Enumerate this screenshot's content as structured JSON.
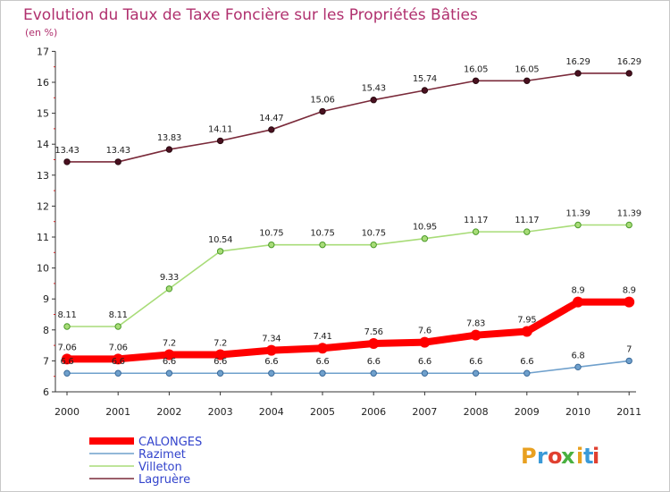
{
  "chart_data": {
    "type": "line",
    "title": "Evolution du Taux de Taxe Foncière sur les Propriétés Bâties",
    "unit_label": "(en %)",
    "categories": [
      "2000",
      "2001",
      "2002",
      "2003",
      "2004",
      "2005",
      "2006",
      "2007",
      "2008",
      "2009",
      "2010",
      "2011"
    ],
    "ylim": [
      6,
      17
    ],
    "yticks": [
      6,
      7,
      8,
      9,
      10,
      11,
      12,
      13,
      14,
      15,
      16,
      17
    ],
    "grid": false,
    "legend_position": "bottom-left",
    "series": [
      {
        "name": "CALONGES",
        "color": "#ff0000",
        "values": [
          7.06,
          7.06,
          7.2,
          7.2,
          7.34,
          7.41,
          7.56,
          7.6,
          7.83,
          7.95,
          8.9,
          8.9
        ],
        "labels": [
          "7.06",
          "7.06",
          "7.2",
          "7.2",
          "7.34",
          "7.41",
          "7.56",
          "7.6",
          "7.83",
          "7.95",
          "8.9",
          "8.9"
        ]
      },
      {
        "name": "Razimet",
        "color": "#6fa0cc",
        "values": [
          6.6,
          6.6,
          6.6,
          6.6,
          6.6,
          6.6,
          6.6,
          6.6,
          6.6,
          6.6,
          6.8,
          7
        ],
        "labels": [
          "6.6",
          "6.6",
          "6.6",
          "6.6",
          "6.6",
          "6.6",
          "6.6",
          "6.6",
          "6.6",
          "6.6",
          "6.8",
          "7"
        ]
      },
      {
        "name": "Villeton",
        "color": "#a8dc78",
        "values": [
          8.11,
          8.11,
          9.33,
          10.54,
          10.75,
          10.75,
          10.75,
          10.95,
          11.17,
          11.17,
          11.39,
          11.39
        ],
        "labels": [
          "8.11",
          "8.11",
          "9.33",
          "10.54",
          "10.75",
          "10.75",
          "10.75",
          "10.95",
          "11.17",
          "11.17",
          "11.39",
          "11.39"
        ]
      },
      {
        "name": "Lagruère",
        "color": "#7a2a3a",
        "values": [
          13.43,
          13.43,
          13.83,
          14.11,
          14.47,
          15.06,
          15.43,
          15.74,
          16.05,
          16.05,
          16.29,
          16.29
        ],
        "labels": [
          "13.43",
          "13.43",
          "13.83",
          "14.11",
          "14.47",
          "15.06",
          "15.43",
          "15.74",
          "16.05",
          "16.05",
          "16.29",
          "16.29"
        ]
      }
    ]
  },
  "logo": {
    "text": "Proxiti",
    "colors": [
      "#e8a020",
      "#3a9ad8",
      "#e04030",
      "#49b040",
      "#e8a020",
      "#3a9ad8",
      "#e04030"
    ]
  }
}
